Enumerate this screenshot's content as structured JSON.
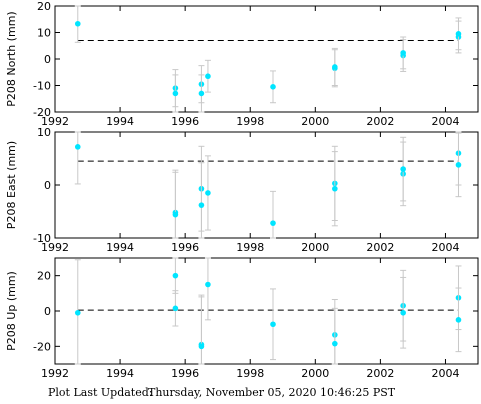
{
  "footer": {
    "label": "Plot Last Updated:",
    "timestamp": "Thursday, November 05, 2020 10:46:25 PST"
  },
  "colors": {
    "points": "#00e5ff",
    "error_bars": "#c8c8c8",
    "axes": "#000000"
  },
  "chart_data": [
    {
      "type": "scatter",
      "ylabel": "P208 North (mm)",
      "xlim": [
        1992,
        2005
      ],
      "ylim": [
        -20,
        20
      ],
      "xticks": [
        1992,
        1994,
        1996,
        1998,
        2000,
        2002,
        2004
      ],
      "yticks": [
        -20,
        -10,
        0,
        10,
        20
      ],
      "reference_value": 7,
      "points": [
        {
          "x": 1992.7,
          "y": 13.3,
          "err": 7
        },
        {
          "x": 1995.7,
          "y": -11,
          "err": 7
        },
        {
          "x": 1995.7,
          "y": -13,
          "err": 7
        },
        {
          "x": 1996.5,
          "y": -9.5,
          "err": 7
        },
        {
          "x": 1996.5,
          "y": -13,
          "err": 7
        },
        {
          "x": 1996.7,
          "y": -6.5,
          "err": 6
        },
        {
          "x": 1998.7,
          "y": -10.5,
          "err": 6
        },
        {
          "x": 2000.6,
          "y": -3.5,
          "err": 7
        },
        {
          "x": 2000.6,
          "y": -3,
          "err": 7
        },
        {
          "x": 2002.7,
          "y": 1.3,
          "err": 6
        },
        {
          "x": 2002.7,
          "y": 2.3,
          "err": 6
        },
        {
          "x": 2004.4,
          "y": 8.3,
          "err": 6
        },
        {
          "x": 2004.4,
          "y": 9.5,
          "err": 6
        }
      ]
    },
    {
      "type": "scatter",
      "ylabel": "P208 East (mm)",
      "xlim": [
        1992,
        2005
      ],
      "ylim": [
        -10,
        10
      ],
      "xticks": [
        1992,
        1994,
        1996,
        1998,
        2000,
        2002,
        2004
      ],
      "yticks": [
        -10,
        0,
        10
      ],
      "reference_value": 4.5,
      "points": [
        {
          "x": 1992.7,
          "y": 7.2,
          "err": 7
        },
        {
          "x": 1995.7,
          "y": -5.2,
          "err": 8
        },
        {
          "x": 1995.7,
          "y": -5.6,
          "err": 8
        },
        {
          "x": 1996.5,
          "y": -0.7,
          "err": 8
        },
        {
          "x": 1996.5,
          "y": -3.8,
          "err": 8
        },
        {
          "x": 1996.7,
          "y": -1.5,
          "err": 7
        },
        {
          "x": 1998.7,
          "y": -7.2,
          "err": 6
        },
        {
          "x": 2000.6,
          "y": 0.3,
          "err": 7
        },
        {
          "x": 2000.6,
          "y": -0.7,
          "err": 7
        },
        {
          "x": 2002.7,
          "y": 2.1,
          "err": 6
        },
        {
          "x": 2002.7,
          "y": 3,
          "err": 6
        },
        {
          "x": 2004.4,
          "y": 6,
          "err": 6
        },
        {
          "x": 2004.4,
          "y": 3.8,
          "err": 6
        }
      ]
    },
    {
      "type": "scatter",
      "ylabel": "P208 Up (mm)",
      "xlim": [
        1992,
        2005
      ],
      "ylim": [
        -30,
        30
      ],
      "xticks": [
        1992,
        1994,
        1996,
        1998,
        2000,
        2002,
        2004
      ],
      "yticks": [
        -20,
        0,
        20
      ],
      "reference_value": 0.5,
      "points": [
        {
          "x": 1992.7,
          "y": -1,
          "err": 30
        },
        {
          "x": 1995.7,
          "y": 20,
          "err": 10
        },
        {
          "x": 1995.7,
          "y": 1.5,
          "err": 10
        },
        {
          "x": 1996.5,
          "y": -19,
          "err": 28
        },
        {
          "x": 1996.5,
          "y": -20,
          "err": 28
        },
        {
          "x": 1996.7,
          "y": 15,
          "err": 20
        },
        {
          "x": 1998.7,
          "y": -7.5,
          "err": 20
        },
        {
          "x": 2000.6,
          "y": -13.5,
          "err": 20
        },
        {
          "x": 2000.6,
          "y": -18.5,
          "err": 20
        },
        {
          "x": 2002.7,
          "y": 3,
          "err": 20
        },
        {
          "x": 2002.7,
          "y": -1,
          "err": 20
        },
        {
          "x": 2004.4,
          "y": 7.5,
          "err": 18
        },
        {
          "x": 2004.4,
          "y": -5,
          "err": 18
        }
      ]
    }
  ]
}
